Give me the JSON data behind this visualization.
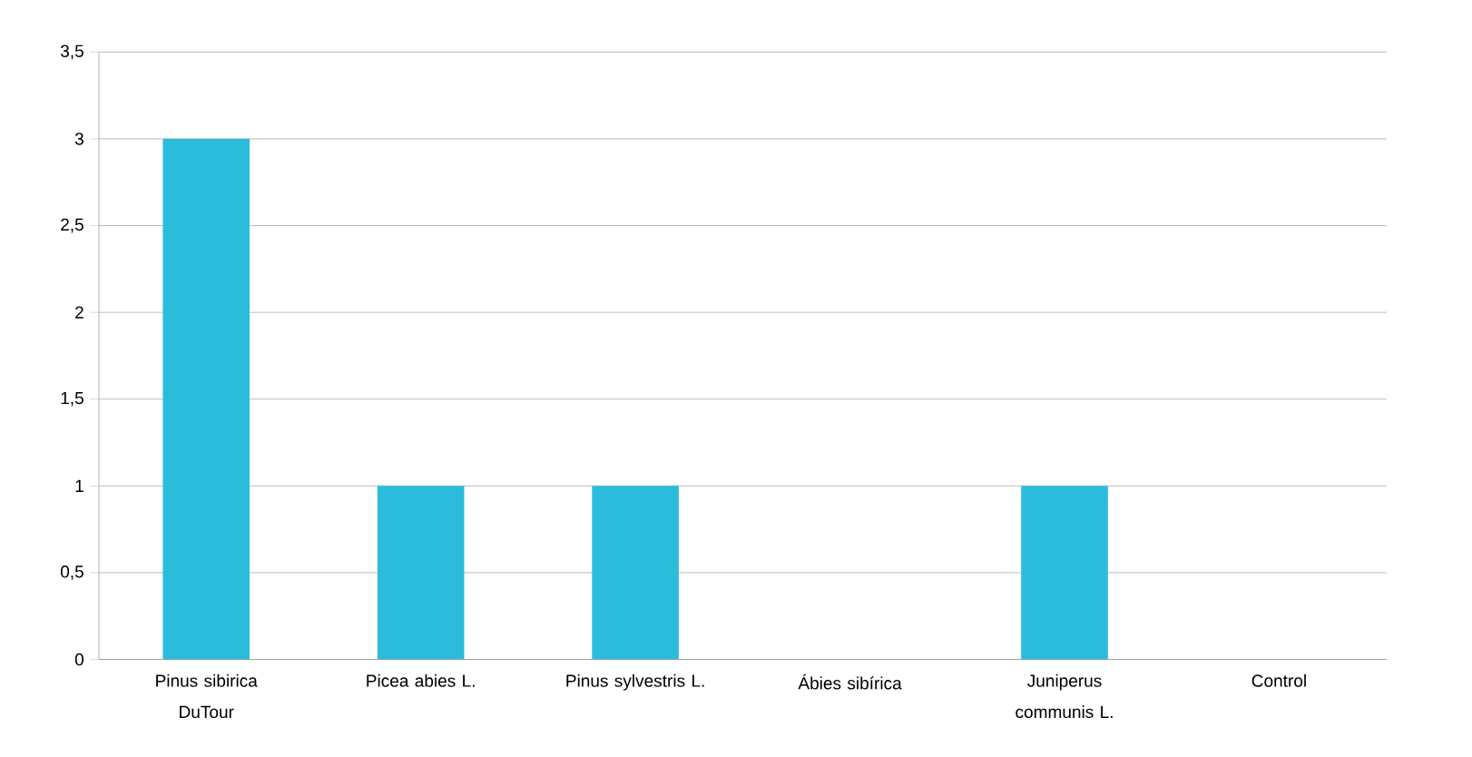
{
  "chart_data": {
    "type": "bar",
    "categories": [
      "Pinus sibirica DuTour",
      "Picea abies L.",
      "Pinus sylvestris L.",
      "Ábies  sibírica",
      "Juniperus communis L.",
      "Control"
    ],
    "values": [
      3,
      1,
      1,
      0,
      1,
      0
    ],
    "color": "#2bbcdc",
    "ylim": [
      0,
      3.5
    ],
    "yticks": [
      0,
      {
        "value": 0.5,
        "label": "0,5"
      },
      1,
      {
        "value": 1.5,
        "label": "1,5"
      },
      2,
      {
        "value": 2.5,
        "label": "2,5"
      },
      3,
      {
        "value": 3.5,
        "label": "3,5"
      }
    ],
    "grid": "y"
  }
}
